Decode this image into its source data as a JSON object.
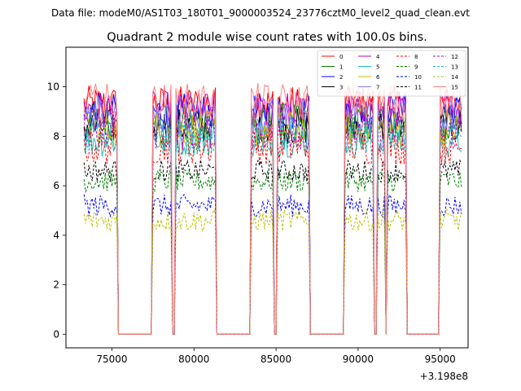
{
  "header": {
    "data_file": "Data file: modeM0/AS1T03_180T01_9000003524_23776cztM0_level2_quad_clean.evt"
  },
  "chart_data": {
    "type": "line",
    "title": "Quadrant 2 module wise count rates with 100.0s bins.",
    "xlabel": "",
    "ylabel": "",
    "x_offset_label": "+3.198e8",
    "xlim": [
      72200,
      96700
    ],
    "ylim": [
      -0.55,
      11.6
    ],
    "x_ticks": [
      75000,
      80000,
      85000,
      90000,
      95000
    ],
    "x_tick_labels": [
      "75000",
      "80000",
      "85000",
      "90000",
      "95000"
    ],
    "y_ticks": [
      0,
      2,
      4,
      6,
      8,
      10
    ],
    "y_tick_labels": [
      "0",
      "2",
      "4",
      "6",
      "8",
      "10"
    ],
    "legend_position": "top-right",
    "bin_seconds": 100,
    "on_intervals": [
      [
        73300,
        75300
      ],
      [
        77500,
        78600
      ],
      [
        78900,
        81300
      ],
      [
        83500,
        84800
      ],
      [
        85100,
        87000
      ],
      [
        89200,
        90900
      ],
      [
        91200,
        91600
      ],
      [
        91800,
        92900
      ],
      [
        95000,
        96300
      ]
    ],
    "off_level": 0,
    "series": [
      {
        "name": "0",
        "color": "#ff0000",
        "dash": "solid",
        "mean": 9.3
      },
      {
        "name": "1",
        "color": "#008000",
        "dash": "solid",
        "mean": 8.6
      },
      {
        "name": "2",
        "color": "#0000ff",
        "dash": "solid",
        "mean": 9.0
      },
      {
        "name": "3",
        "color": "#000000",
        "dash": "solid",
        "mean": 8.4
      },
      {
        "name": "4",
        "color": "#bf00bf",
        "dash": "solid",
        "mean": 9.1
      },
      {
        "name": "5",
        "color": "#20c0c0",
        "dash": "solid",
        "mean": 7.9
      },
      {
        "name": "6",
        "color": "#bfbf00",
        "dash": "solid",
        "mean": 8.3
      },
      {
        "name": "7",
        "color": "#8080ff",
        "dash": "solid",
        "mean": 8.8
      },
      {
        "name": "8",
        "color": "#ff0000",
        "dash": "dashed",
        "mean": 7.6
      },
      {
        "name": "9",
        "color": "#008000",
        "dash": "dashed",
        "mean": 6.2
      },
      {
        "name": "10",
        "color": "#0000ff",
        "dash": "dashed",
        "mean": 5.2
      },
      {
        "name": "11",
        "color": "#000000",
        "dash": "dashed",
        "mean": 6.6
      },
      {
        "name": "12",
        "color": "#bf00bf",
        "dash": "dashed",
        "mean": 8.2
      },
      {
        "name": "13",
        "color": "#20c0c0",
        "dash": "dashed",
        "mean": 8.0
      },
      {
        "name": "14",
        "color": "#bfbf00",
        "dash": "dashed",
        "mean": 4.6
      },
      {
        "name": "15",
        "color": "#ff8080",
        "dash": "solid",
        "mean": 9.4
      }
    ]
  }
}
